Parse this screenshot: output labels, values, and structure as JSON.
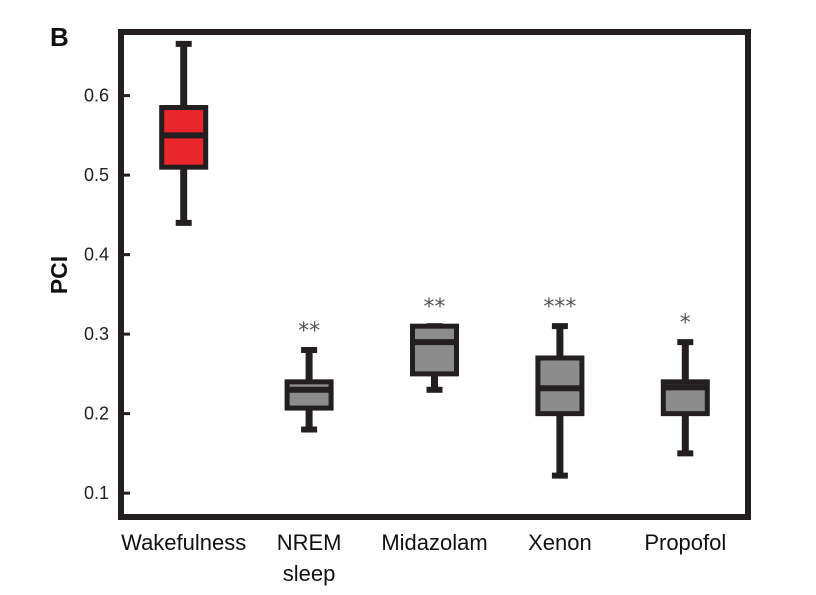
{
  "panel_label": "B",
  "chart_data": {
    "type": "box",
    "ylabel": "PCI",
    "ylim": [
      0.07,
      0.68
    ],
    "yticks": [
      0.1,
      0.2,
      0.3,
      0.4,
      0.5,
      0.6
    ],
    "ytick_labels": [
      "0.1",
      "0.2",
      "0.3",
      "0.4",
      "0.5",
      "0.6"
    ],
    "categories": [
      {
        "label": [
          "Wakefulness"
        ],
        "min": 0.44,
        "q1": 0.51,
        "median": 0.55,
        "q3": 0.585,
        "max": 0.665,
        "color": "#e8262b",
        "significance": ""
      },
      {
        "label": [
          "NREM",
          "sleep"
        ],
        "min": 0.18,
        "q1": 0.207,
        "median": 0.23,
        "q3": 0.24,
        "max": 0.28,
        "color": "#8c8c8c",
        "significance": "**"
      },
      {
        "label": [
          "Midazolam"
        ],
        "min": 0.23,
        "q1": 0.25,
        "median": 0.29,
        "q3": 0.31,
        "max": 0.31,
        "color": "#8c8c8c",
        "significance": "**"
      },
      {
        "label": [
          "Xenon"
        ],
        "min": 0.122,
        "q1": 0.2,
        "median": 0.232,
        "q3": 0.27,
        "max": 0.31,
        "color": "#8c8c8c",
        "significance": "***"
      },
      {
        "label": [
          "Propofol"
        ],
        "min": 0.15,
        "q1": 0.2,
        "median": 0.233,
        "q3": 0.24,
        "max": 0.29,
        "color": "#8c8c8c",
        "significance": "*"
      }
    ],
    "frame_color": "#231f20",
    "grid": false
  }
}
